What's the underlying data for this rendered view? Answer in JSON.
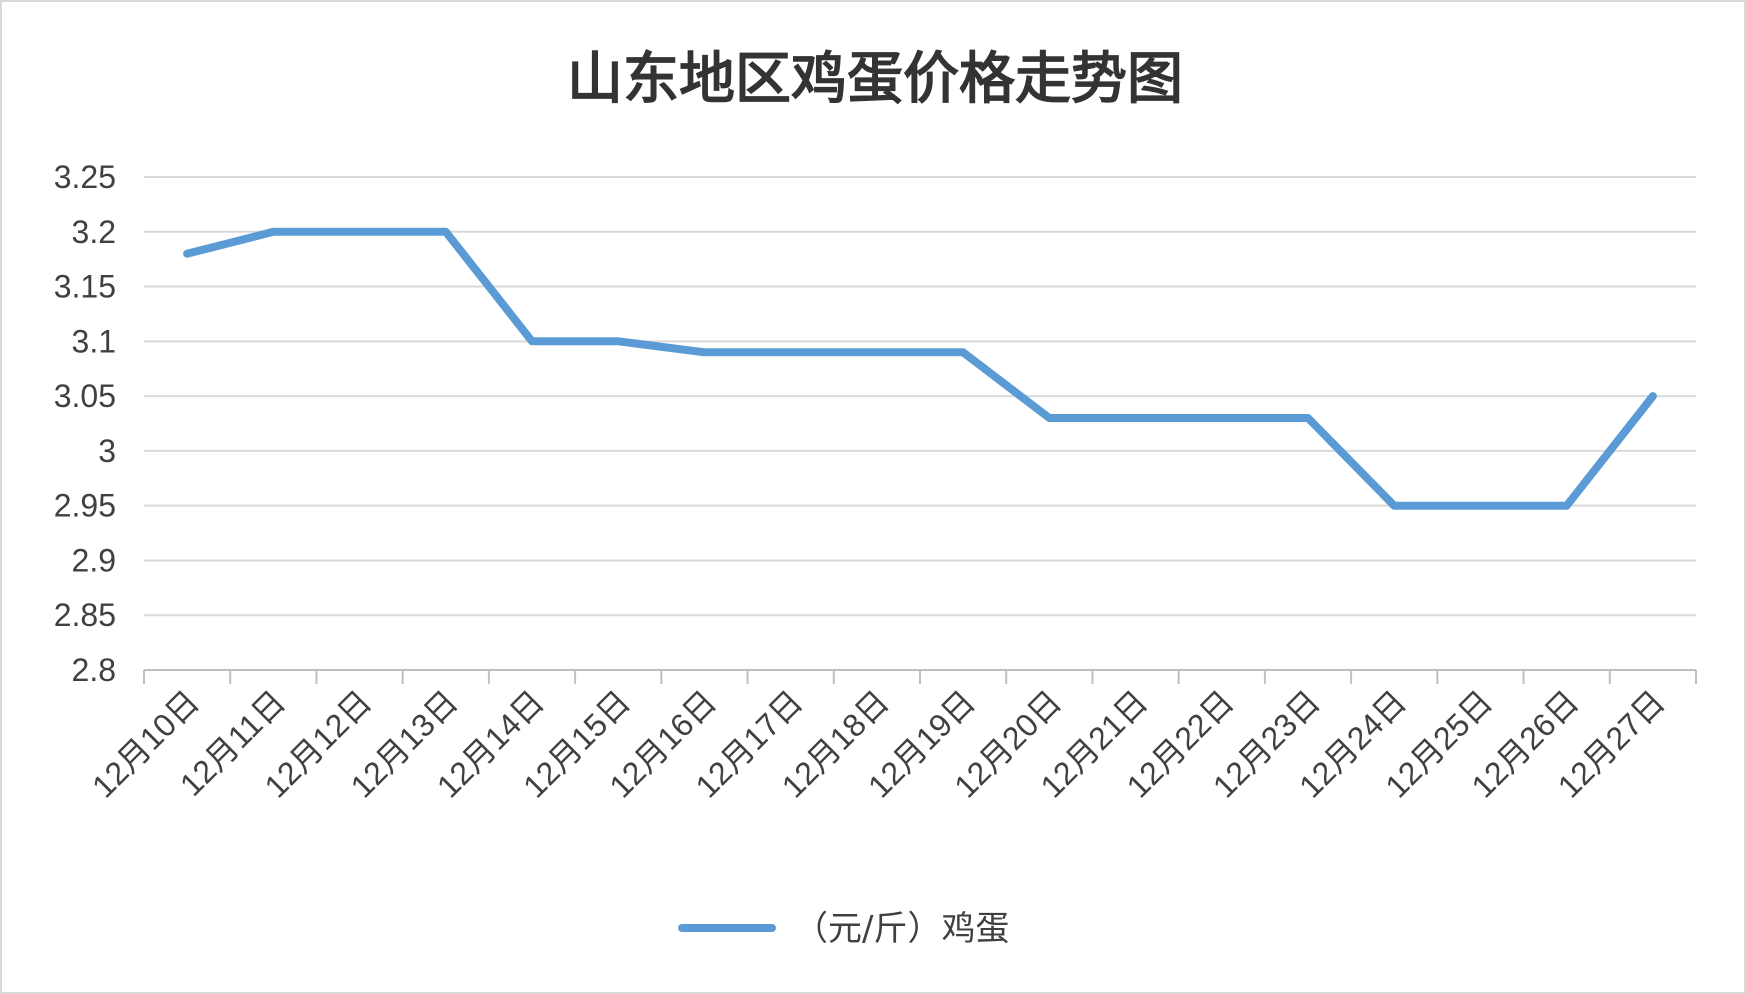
{
  "chart_data": {
    "type": "line",
    "title": "山东地区鸡蛋价格走势图",
    "categories": [
      "12月10日",
      "12月11日",
      "12月12日",
      "12月13日",
      "12月14日",
      "12月15日",
      "12月16日",
      "12月17日",
      "12月18日",
      "12月19日",
      "12月20日",
      "12月21日",
      "12月22日",
      "12月23日",
      "12月24日",
      "12月25日",
      "12月26日",
      "12月27日"
    ],
    "series": [
      {
        "name": "（元/斤）鸡蛋",
        "color": "#5b9bd5",
        "values": [
          3.18,
          3.2,
          3.2,
          3.2,
          3.1,
          3.1,
          3.09,
          3.09,
          3.09,
          3.09,
          3.03,
          3.03,
          3.03,
          3.03,
          2.95,
          2.95,
          2.95,
          3.05
        ]
      }
    ],
    "ylim": [
      2.8,
      3.25
    ],
    "yticks": [
      "3.25",
      "3.2",
      "3.15",
      "3.1",
      "3.05",
      "3",
      "2.95",
      "2.9",
      "2.85",
      "2.8"
    ],
    "xlabel": "",
    "ylabel": "",
    "grid": true,
    "legend": "bottom"
  }
}
